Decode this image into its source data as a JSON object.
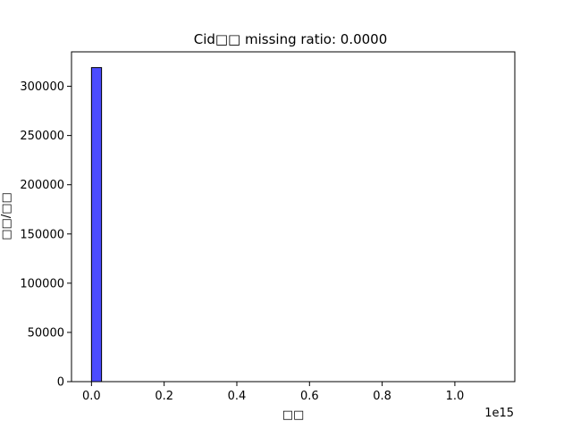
{
  "chart_data": {
    "type": "bar",
    "title": "Cid□□  missing ratio: 0.0000",
    "xlabel": "□□",
    "ylabel": "□□/□□",
    "x_offset_label": "1e15",
    "xlim": [
      -0.055,
      1.165
    ],
    "ylim": [
      0,
      335000
    ],
    "xticks": [
      0.0,
      0.2,
      0.4,
      0.6,
      0.8,
      1.0
    ],
    "xtick_labels": [
      "0.0",
      "0.2",
      "0.4",
      "0.6",
      "0.8",
      "1.0"
    ],
    "yticks": [
      0,
      50000,
      100000,
      150000,
      200000,
      250000,
      300000
    ],
    "ytick_labels": [
      "0",
      "50000",
      "100000",
      "150000",
      "200000",
      "250000",
      "300000"
    ],
    "grid": false,
    "bar_color": "#0000ff",
    "bar_alpha": 0.7,
    "bar_edge_color": "#000000",
    "bins": [
      {
        "x0": 0.0,
        "x1": 0.0277,
        "value": 319000
      }
    ]
  }
}
